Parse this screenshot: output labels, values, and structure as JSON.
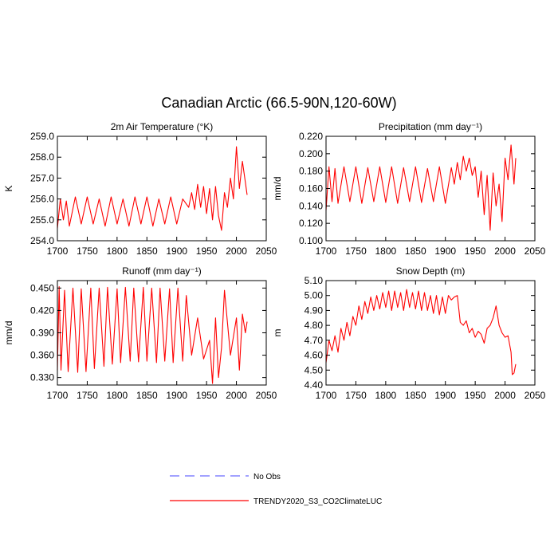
{
  "figure": {
    "title": "Canadian Arctic (66.5-90N,120-60W)",
    "legend": [
      {
        "label": "No Obs",
        "color": "#6b6bff",
        "dash": true
      },
      {
        "label": "TRENDY2020_S3_CO2ClimateLUC",
        "color": "#ff0000",
        "dash": false
      }
    ],
    "series_color": "#ff0000"
  },
  "chart_data": [
    {
      "type": "line",
      "title": "2m Air Temperature (°K)",
      "ylabel": "K",
      "xlim": [
        1700,
        2050
      ],
      "ylim": [
        254.0,
        259.0
      ],
      "xticks": [
        1700,
        1750,
        1800,
        1850,
        1900,
        1950,
        2000,
        2050
      ],
      "yticks": [
        "254.0",
        "255.0",
        "256.0",
        "257.0",
        "258.0",
        "259.0"
      ],
      "series": [
        {
          "x": [
            1700,
            1705,
            1710,
            1715,
            1720,
            1730,
            1740,
            1750,
            1760,
            1770,
            1780,
            1790,
            1800,
            1810,
            1820,
            1830,
            1840,
            1850,
            1860,
            1870,
            1880,
            1890,
            1900,
            1910,
            1920,
            1925,
            1930,
            1935,
            1940,
            1945,
            1950,
            1955,
            1960,
            1965,
            1970,
            1975,
            1980,
            1985,
            1990,
            1995,
            2000,
            2005,
            2010,
            2015,
            2018
          ],
          "y": [
            254.6,
            256.0,
            255.0,
            255.9,
            254.7,
            256.1,
            254.8,
            256.1,
            254.8,
            256.0,
            254.7,
            256.1,
            254.8,
            256.0,
            254.7,
            256.1,
            254.8,
            256.1,
            254.7,
            256.0,
            254.8,
            256.1,
            254.8,
            256.0,
            255.6,
            256.3,
            255.5,
            256.7,
            255.6,
            256.6,
            255.3,
            256.5,
            255.0,
            256.6,
            255.2,
            254.5,
            256.3,
            255.6,
            257.0,
            256.0,
            258.5,
            256.5,
            257.8,
            256.8,
            256.2
          ]
        }
      ]
    },
    {
      "type": "line",
      "title": "Precipitation (mm day⁻¹)",
      "ylabel": "mm/d",
      "xlim": [
        1700,
        2050
      ],
      "ylim": [
        0.1,
        0.22
      ],
      "xticks": [
        1700,
        1750,
        1800,
        1850,
        1900,
        1950,
        2000,
        2050
      ],
      "yticks": [
        "0.100",
        "0.120",
        "0.140",
        "0.160",
        "0.180",
        "0.200",
        "0.220"
      ],
      "series": [
        {
          "x": [
            1700,
            1705,
            1710,
            1715,
            1720,
            1730,
            1740,
            1750,
            1760,
            1770,
            1780,
            1790,
            1800,
            1810,
            1820,
            1830,
            1840,
            1850,
            1860,
            1870,
            1880,
            1890,
            1900,
            1910,
            1915,
            1920,
            1925,
            1930,
            1935,
            1940,
            1945,
            1950,
            1955,
            1960,
            1965,
            1970,
            1975,
            1980,
            1985,
            1990,
            1995,
            2000,
            2005,
            2010,
            2015,
            2018
          ],
          "y": [
            0.135,
            0.185,
            0.145,
            0.183,
            0.143,
            0.185,
            0.145,
            0.185,
            0.143,
            0.184,
            0.145,
            0.185,
            0.144,
            0.185,
            0.143,
            0.184,
            0.145,
            0.185,
            0.144,
            0.183,
            0.145,
            0.185,
            0.143,
            0.184,
            0.165,
            0.19,
            0.17,
            0.197,
            0.18,
            0.195,
            0.175,
            0.185,
            0.15,
            0.18,
            0.13,
            0.175,
            0.112,
            0.178,
            0.14,
            0.165,
            0.122,
            0.195,
            0.17,
            0.21,
            0.165,
            0.195
          ]
        }
      ]
    },
    {
      "type": "line",
      "title": "Runoff (mm day⁻¹)",
      "ylabel": "mm/d",
      "xlim": [
        1700,
        2050
      ],
      "ylim": [
        0.32,
        0.46
      ],
      "xticks": [
        1700,
        1750,
        1800,
        1850,
        1900,
        1950,
        2000,
        2050
      ],
      "yticks": [
        "0.330",
        "0.360",
        "0.390",
        "0.420",
        "0.450"
      ],
      "series": [
        {
          "x": [
            1700,
            1703,
            1706,
            1712,
            1718,
            1726,
            1734,
            1740,
            1748,
            1756,
            1762,
            1770,
            1778,
            1784,
            1792,
            1800,
            1806,
            1814,
            1822,
            1828,
            1836,
            1844,
            1850,
            1858,
            1866,
            1872,
            1880,
            1888,
            1894,
            1902,
            1910,
            1916,
            1925,
            1935,
            1945,
            1955,
            1960,
            1965,
            1970,
            1975,
            1980,
            1990,
            2000,
            2005,
            2010,
            2015,
            2018
          ],
          "y": [
            0.34,
            0.452,
            0.34,
            0.447,
            0.338,
            0.45,
            0.337,
            0.449,
            0.338,
            0.45,
            0.342,
            0.45,
            0.345,
            0.451,
            0.348,
            0.449,
            0.35,
            0.451,
            0.352,
            0.45,
            0.351,
            0.451,
            0.352,
            0.45,
            0.35,
            0.45,
            0.352,
            0.449,
            0.35,
            0.45,
            0.352,
            0.44,
            0.36,
            0.41,
            0.355,
            0.38,
            0.322,
            0.41,
            0.33,
            0.37,
            0.447,
            0.36,
            0.41,
            0.34,
            0.415,
            0.39,
            0.405
          ]
        }
      ]
    },
    {
      "type": "line",
      "title": "Snow Depth (m)",
      "ylabel": "m",
      "xlim": [
        1700,
        2050
      ],
      "ylim": [
        4.4,
        5.1
      ],
      "xticks": [
        1700,
        1750,
        1800,
        1850,
        1900,
        1950,
        2000,
        2050
      ],
      "yticks": [
        "4.40",
        "4.50",
        "4.60",
        "4.70",
        "4.80",
        "4.90",
        "5.00",
        "5.10"
      ],
      "series": [
        {
          "x": [
            1700,
            1705,
            1710,
            1715,
            1720,
            1725,
            1730,
            1735,
            1740,
            1745,
            1750,
            1755,
            1760,
            1765,
            1770,
            1775,
            1780,
            1785,
            1790,
            1795,
            1800,
            1805,
            1810,
            1815,
            1820,
            1825,
            1830,
            1835,
            1840,
            1845,
            1850,
            1855,
            1860,
            1865,
            1870,
            1875,
            1880,
            1885,
            1890,
            1895,
            1900,
            1905,
            1910,
            1915,
            1920,
            1925,
            1930,
            1935,
            1940,
            1945,
            1950,
            1955,
            1960,
            1965,
            1970,
            1975,
            1980,
            1985,
            1990,
            1995,
            2000,
            2005,
            2010,
            2012,
            2015,
            2018
          ],
          "y": [
            4.55,
            4.7,
            4.63,
            4.73,
            4.62,
            4.78,
            4.7,
            4.82,
            4.73,
            4.86,
            4.8,
            4.93,
            4.84,
            4.96,
            4.88,
            4.99,
            4.9,
            5.0,
            4.91,
            5.02,
            4.92,
            5.03,
            4.9,
            5.03,
            4.92,
            5.02,
            4.9,
            5.04,
            4.92,
            5.02,
            4.91,
            5.03,
            4.9,
            5.02,
            4.9,
            5.0,
            4.88,
            5.0,
            4.87,
            4.99,
            4.88,
            5.0,
            4.97,
            4.99,
            5.0,
            4.82,
            4.8,
            4.83,
            4.75,
            4.78,
            4.72,
            4.76,
            4.74,
            4.68,
            4.78,
            4.8,
            4.85,
            4.93,
            4.8,
            4.75,
            4.72,
            4.73,
            4.62,
            4.47,
            4.48,
            4.54
          ]
        }
      ]
    }
  ]
}
